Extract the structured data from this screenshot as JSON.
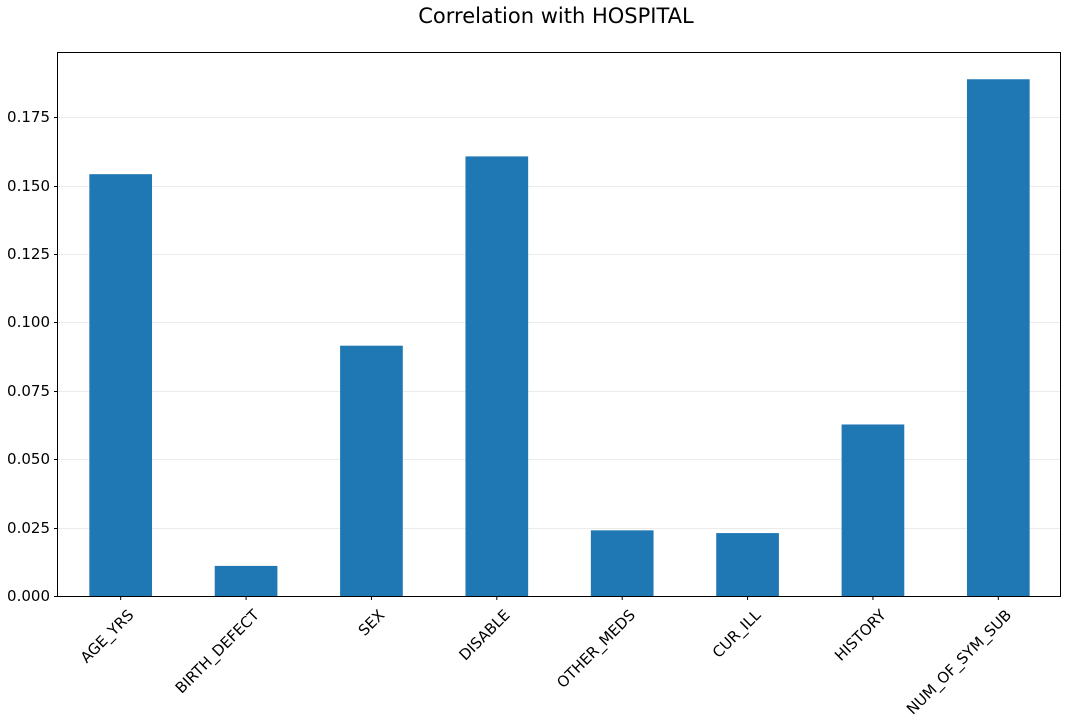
{
  "chart_data": {
    "type": "bar",
    "title": "Correlation with HOSPITAL",
    "xlabel": "",
    "ylabel": "",
    "categories": [
      "AGE_YRS",
      "BIRTH_DEFECT",
      "SEX",
      "DISABLE",
      "OTHER_MEDS",
      "CUR_ILL",
      "HISTORY",
      "NUM_OF_SYM_SUB"
    ],
    "values": [
      0.1542,
      0.011,
      0.0915,
      0.1607,
      0.024,
      0.023,
      0.0627,
      0.1889
    ],
    "ylim": [
      0,
      0.1985
    ],
    "yticks": [
      0.0,
      0.025,
      0.05,
      0.075,
      0.1,
      0.125,
      0.15,
      0.175
    ],
    "ytick_labels": [
      "0.000",
      "0.025",
      "0.050",
      "0.075",
      "0.100",
      "0.125",
      "0.150",
      "0.175"
    ],
    "grid": "y-axis, light",
    "legend": "none",
    "bar_color": "#1f77b4",
    "grid_color": "#ebebeb"
  }
}
